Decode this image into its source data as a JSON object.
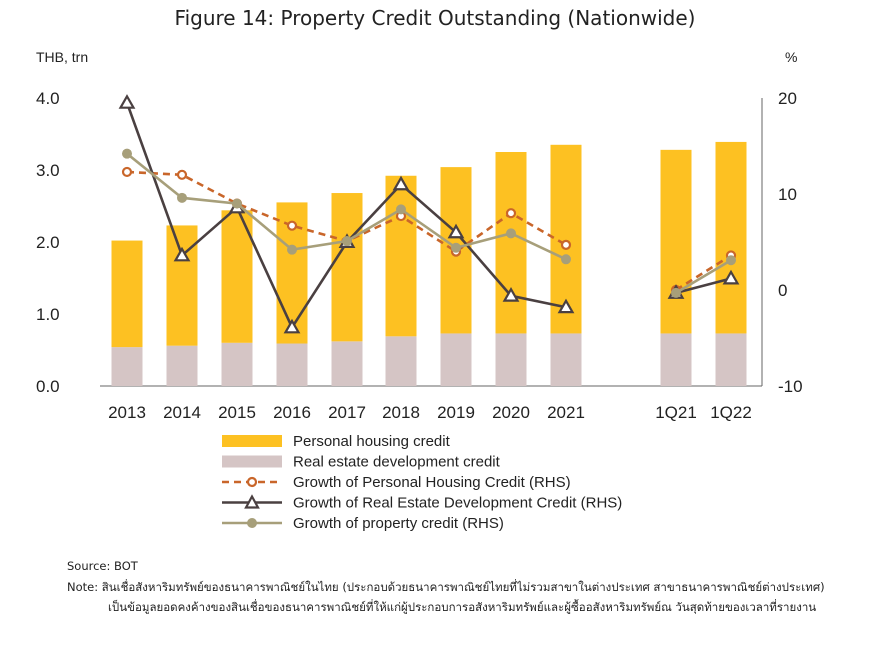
{
  "chart_data": {
    "type": "bar",
    "title": "Figure 14: Property Credit Outstanding (Nationwide)",
    "ylabel_left": "THB, trn",
    "ylabel_right": "%",
    "ylim_left": [
      0,
      4
    ],
    "ylim_right": [
      -10,
      20
    ],
    "yticks_left": [
      "0.0",
      "1.0",
      "2.0",
      "3.0",
      "4.0"
    ],
    "yticks_right": [
      "-10",
      "0",
      "10",
      "20"
    ],
    "categories": [
      "2013",
      "2014",
      "2015",
      "2016",
      "2017",
      "2018",
      "2019",
      "2020",
      "2021",
      "1Q21",
      "1Q22"
    ],
    "bar_series": [
      {
        "name": "Personal housing credit",
        "color": "#FDC122",
        "values": [
          1.48,
          1.67,
          1.84,
          1.96,
          2.06,
          2.23,
          2.31,
          2.52,
          2.62,
          2.55,
          2.66
        ]
      },
      {
        "name": "Real estate development credit",
        "color": "#D5C5C5",
        "values": [
          0.54,
          0.56,
          0.6,
          0.59,
          0.62,
          0.69,
          0.73,
          0.73,
          0.73,
          0.73,
          0.73
        ]
      }
    ],
    "line_series": [
      {
        "name": "Growth of Personal Housing Credit (RHS)",
        "color": "#C9662A",
        "style": "dashed",
        "marker": "circle",
        "segments": [
          [
            12.3,
            12.0,
            9.0,
            6.7,
            5.1,
            7.7,
            4.0,
            8.0,
            4.7
          ],
          [
            0.0,
            3.6
          ]
        ]
      },
      {
        "name": "Growth of Real Estate Development Credit (RHS)",
        "color": "#4A4041",
        "style": "solid",
        "marker": "triangle",
        "segments": [
          [
            19.5,
            3.6,
            8.6,
            -3.9,
            5.0,
            11.0,
            6.0,
            -0.6,
            -1.8
          ],
          [
            -0.3,
            1.2
          ]
        ]
      },
      {
        "name": "Growth of property credit (RHS)",
        "color": "#A79F7A",
        "style": "solid",
        "marker": "dot",
        "segments": [
          [
            14.2,
            9.6,
            9.0,
            4.2,
            5.1,
            8.4,
            4.4,
            5.9,
            3.2
          ],
          [
            -0.3,
            3.1
          ]
        ]
      }
    ],
    "legend_position": "bottom"
  },
  "footer": {
    "source": "Source: BOT",
    "note_line1": "Note: สินเชื่อสังหาริมทรัพย์ของธนาคารพาณิชย์ในไทย (ประกอบด้วยธนาคารพาณิชย์ไทยที่ไม่รวมสาขาในต่างประเทศ สาขาธนาคารพาณิชย์ต่างประเทศ)",
    "note_line2": "เป็นข้อมูลยอดคงค้างของสินเชื่อของธนาคารพาณิชย์ที่ให้แก่ผู้ประกอบการอสังหาริมทรัพย์และผู้ซื้ออสังหาริมทรัพย์ณ วันสุดท้ายของเวลาที่รายงาน"
  }
}
